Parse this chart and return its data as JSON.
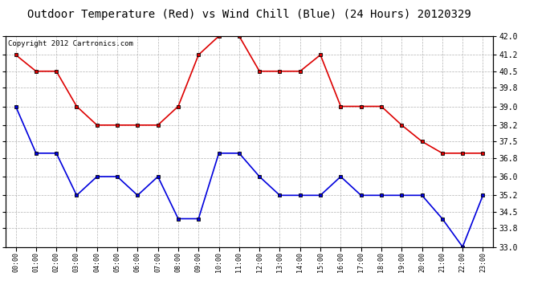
{
  "title": "Outdoor Temperature (Red) vs Wind Chill (Blue) (24 Hours) 20120329",
  "copyright": "Copyright 2012 Cartronics.com",
  "hours": [
    "00:00",
    "01:00",
    "02:00",
    "03:00",
    "04:00",
    "05:00",
    "06:00",
    "07:00",
    "08:00",
    "09:00",
    "10:00",
    "11:00",
    "12:00",
    "13:00",
    "14:00",
    "15:00",
    "16:00",
    "17:00",
    "18:00",
    "19:00",
    "20:00",
    "21:00",
    "22:00",
    "23:00"
  ],
  "red_temp": [
    41.2,
    40.5,
    40.5,
    39.0,
    38.2,
    38.2,
    38.2,
    38.2,
    39.0,
    41.2,
    42.0,
    42.0,
    40.5,
    40.5,
    40.5,
    41.2,
    39.0,
    39.0,
    39.0,
    38.2,
    37.5,
    37.0,
    37.0,
    37.0
  ],
  "blue_chill": [
    39.0,
    37.0,
    37.0,
    35.2,
    36.0,
    36.0,
    35.2,
    36.0,
    34.2,
    34.2,
    37.0,
    37.0,
    36.0,
    35.2,
    35.2,
    35.2,
    36.0,
    35.2,
    35.2,
    35.2,
    35.2,
    34.2,
    33.0,
    35.2
  ],
  "red_color": "#dd0000",
  "blue_color": "#0000dd",
  "marker_color": "#000000",
  "bg_color": "#ffffff",
  "grid_color": "#aaaaaa",
  "ylim": [
    33.0,
    42.0
  ],
  "yticks": [
    33.0,
    33.8,
    34.5,
    35.2,
    36.0,
    36.8,
    37.5,
    38.2,
    39.0,
    39.8,
    40.5,
    41.2,
    42.0
  ],
  "title_fontsize": 10,
  "copyright_fontsize": 6.5,
  "tick_fontsize": 7,
  "xtick_fontsize": 6
}
